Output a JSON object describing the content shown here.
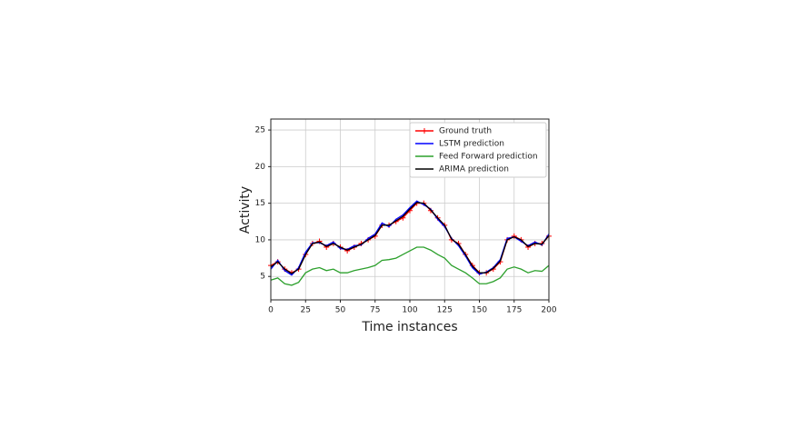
{
  "chart_data": {
    "type": "line",
    "x_label": "Time instances",
    "y_label": "Activity",
    "x": [
      0,
      5,
      10,
      15,
      20,
      25,
      30,
      35,
      40,
      45,
      50,
      55,
      60,
      65,
      70,
      75,
      80,
      85,
      90,
      95,
      100,
      105,
      110,
      115,
      120,
      125,
      130,
      135,
      140,
      145,
      150,
      155,
      160,
      165,
      170,
      175,
      180,
      185,
      190,
      195,
      200
    ],
    "series": [
      {
        "name": "Ground truth",
        "color": "#ff0000",
        "marker": "+",
        "values": [
          6.5,
          7,
          6,
          5.5,
          6,
          8,
          9.5,
          9.8,
          9,
          9.5,
          9,
          8.5,
          9,
          9.5,
          10,
          10.5,
          12,
          12,
          12.5,
          13,
          14,
          15,
          15,
          14,
          13,
          12,
          10,
          9.5,
          8,
          6.5,
          5.5,
          5.5,
          6,
          7,
          10,
          10.5,
          10,
          9,
          9.5,
          9.5,
          10.5
        ]
      },
      {
        "name": "LSTM prediction",
        "color": "#0000ff",
        "values": [
          6,
          7.2,
          5.8,
          5.2,
          6.2,
          8.3,
          9.6,
          9.6,
          9.2,
          9.7,
          8.8,
          8.7,
          9.2,
          9.3,
          10.2,
          10.8,
          12.3,
          11.8,
          12.8,
          13.4,
          14.4,
          15.3,
          14.8,
          14.2,
          12.8,
          11.8,
          10.2,
          9.2,
          7.8,
          6.2,
          5.3,
          5.6,
          6.2,
          7.3,
          10.2,
          10.4,
          9.8,
          9.2,
          9.7,
          9.3,
          10.8
        ]
      },
      {
        "name": "Feed Forward prediction",
        "color": "#2ca02c",
        "values": [
          4.5,
          4.8,
          4,
          3.8,
          4.2,
          5.5,
          6,
          6.2,
          5.8,
          6,
          5.5,
          5.5,
          5.8,
          6,
          6.2,
          6.5,
          7.2,
          7.3,
          7.5,
          8,
          8.5,
          9,
          9,
          8.6,
          8,
          7.5,
          6.5,
          6,
          5.5,
          4.8,
          4,
          4,
          4.3,
          4.8,
          6,
          6.3,
          6,
          5.5,
          5.8,
          5.7,
          6.5
        ]
      },
      {
        "name": "ARIMA prediction",
        "color": "#000000",
        "values": [
          6.3,
          7,
          6,
          5.4,
          6,
          8,
          9.5,
          9.7,
          9.1,
          9.5,
          9,
          8.6,
          9,
          9.4,
          10,
          10.6,
          12,
          12,
          12.6,
          13.2,
          14.2,
          15.1,
          15,
          14.1,
          13,
          12,
          10.1,
          9.4,
          8,
          6.4,
          5.5,
          5.5,
          6.1,
          7.1,
          10,
          10.4,
          10,
          9.1,
          9.5,
          9.4,
          10.6
        ]
      }
    ],
    "xlim": [
      0,
      200
    ],
    "xticks": [
      0,
      25,
      50,
      75,
      100,
      125,
      150,
      175,
      200
    ],
    "ylim": [
      1.8,
      26.5
    ],
    "yticks": [
      5,
      10,
      15,
      20,
      25
    ],
    "grid": true,
    "legend": "upper right"
  }
}
